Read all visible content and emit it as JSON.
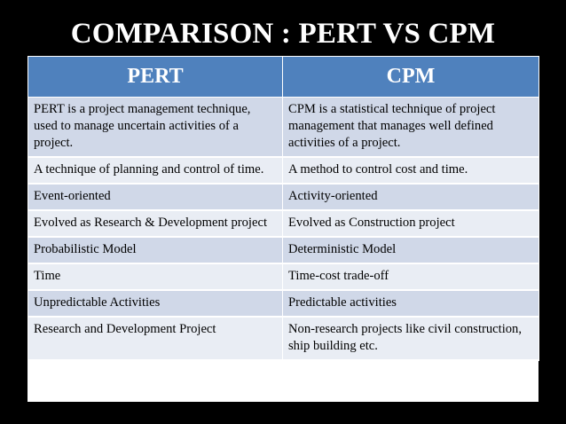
{
  "slide": {
    "title": "COMPARISON : PERT VS CPM"
  },
  "table": {
    "headers": [
      "PERT",
      "CPM"
    ],
    "rows": [
      [
        "PERT is a project management technique, used to manage uncertain activities of a project.",
        "CPM is a statistical technique of project management that manages well defined activities of a project."
      ],
      [
        "A technique of planning and control of time.",
        "A method to control cost and time."
      ],
      [
        "Event-oriented",
        "Activity-oriented"
      ],
      [
        "Evolved as Research & Development project",
        "Evolved as Construction project"
      ],
      [
        "Probabilistic Model",
        "Deterministic Model"
      ],
      [
        "Time",
        "Time-cost trade-off"
      ],
      [
        "Unpredictable Activities",
        "Predictable activities"
      ],
      [
        "Research and Development Project",
        "Non-research projects like civil construction, ship building etc."
      ]
    ]
  },
  "colors": {
    "background": "#000000",
    "header": "#4f81bd",
    "row_band_dark": "#d0d8e8",
    "row_band_light": "#e9edf4"
  }
}
